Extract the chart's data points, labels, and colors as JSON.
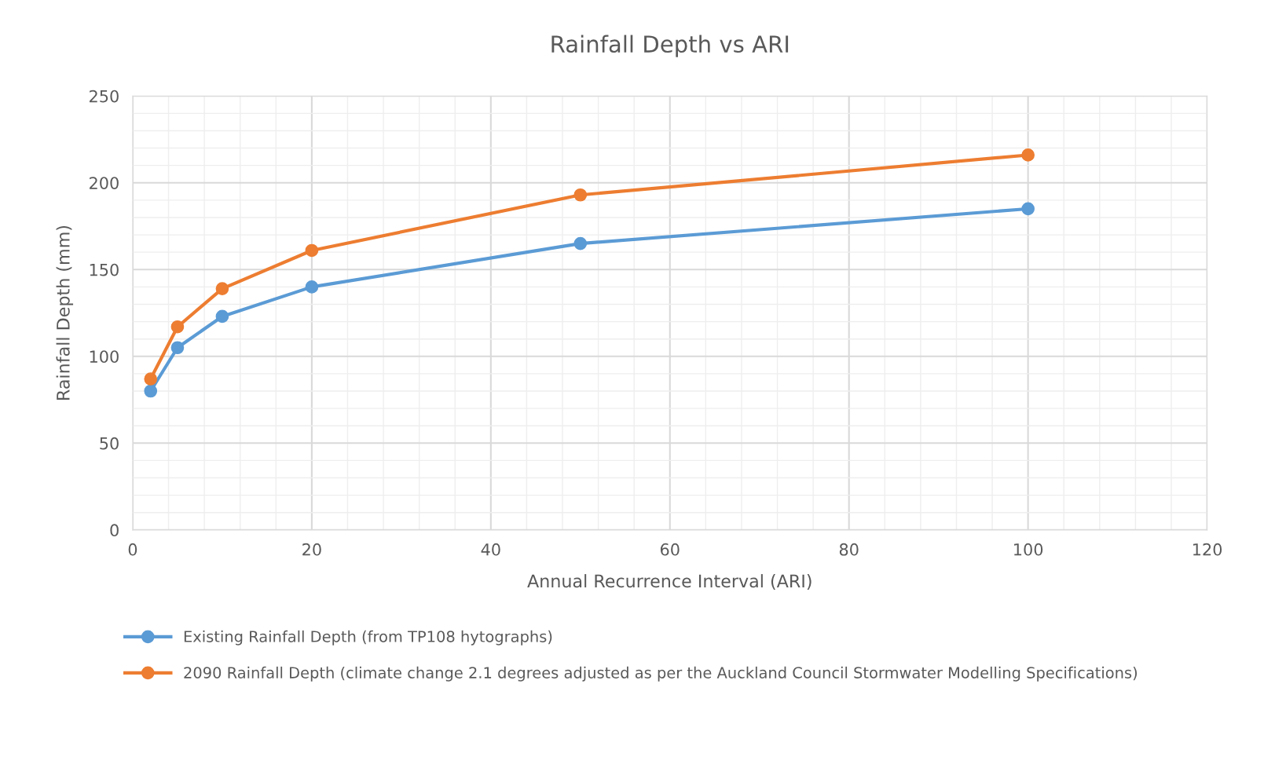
{
  "chart_data": {
    "type": "line",
    "title": "Rainfall Depth vs ARI",
    "xlabel": "Annual Recurrence Interval (ARI)",
    "ylabel": "Rainfall Depth (mm)",
    "x": [
      2,
      5,
      10,
      20,
      50,
      100
    ],
    "series": [
      {
        "name": "Existing Rainfall Depth (from TP108 hytographs)",
        "color": "#5b9bd5",
        "values": [
          80,
          105,
          123,
          140,
          165,
          185
        ]
      },
      {
        "name": "2090 Rainfall Depth (climate change 2.1 degrees adjusted as per the Auckland Council Stormwater Modelling Specifications)",
        "color": "#ed7d31",
        "values": [
          87,
          117,
          139,
          161,
          193,
          216
        ]
      }
    ],
    "xlim": [
      0,
      120
    ],
    "xticks": [
      0,
      20,
      40,
      60,
      80,
      100,
      120
    ],
    "ylim": [
      0,
      250
    ],
    "yticks": [
      0,
      50,
      100,
      150,
      200,
      250
    ],
    "grid": true,
    "legend": "bottom",
    "marker": "circle",
    "line_style": "solid"
  }
}
